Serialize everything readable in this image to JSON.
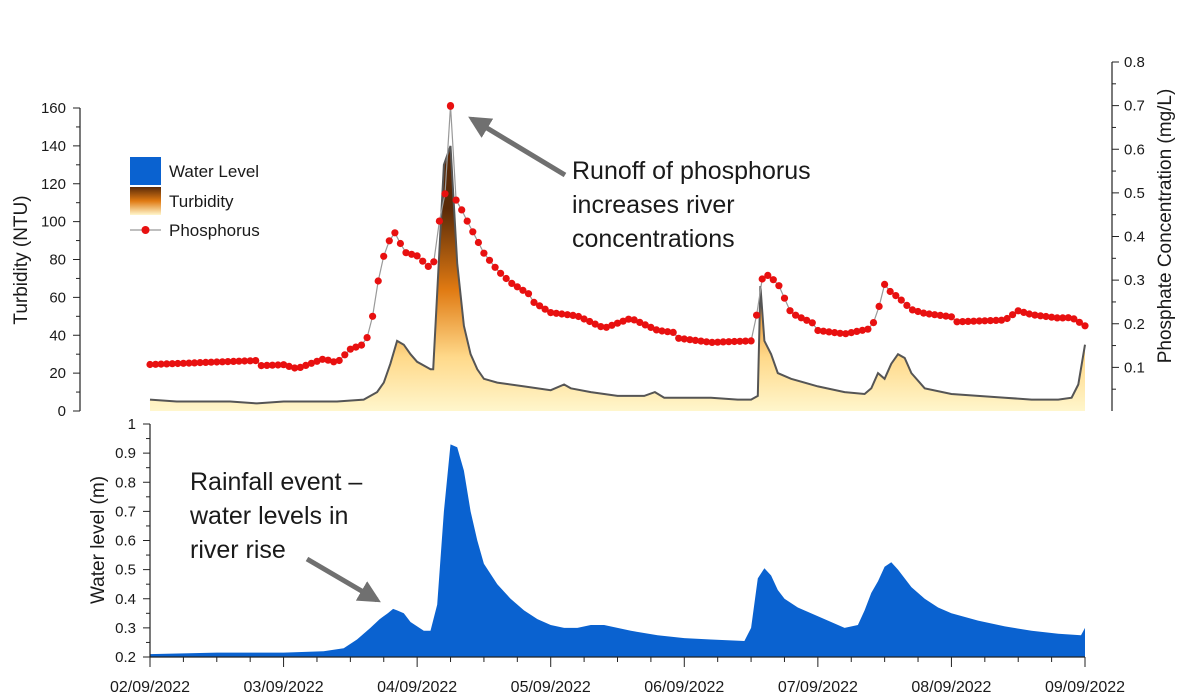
{
  "colors": {
    "water": "#0a62d0",
    "turbidity_dark": "#5a2a08",
    "turbidity_mid": "#e07a12",
    "turbidity_light": "#fff6cc",
    "turbidity_line": "#555555",
    "phosphorus": "#e81010",
    "phosphorus_line": "#999999",
    "arrow": "#707070",
    "axis": "#222222"
  },
  "chart_data": [
    {
      "type": "area",
      "name": "top-panel",
      "ylabel_left": "Turbidity (NTU)",
      "ylabel_right": "Phosphate Concentration (mg/L)",
      "ylim_left": [
        0,
        160
      ],
      "ylim_right": [
        0,
        0.8
      ],
      "xlim": [
        2,
        9
      ],
      "yticks_left": [
        0,
        20,
        40,
        60,
        80,
        100,
        120,
        140,
        160
      ],
      "yticks_right": [
        0.1,
        0.2,
        0.3,
        0.4,
        0.5,
        0.6,
        0.7,
        0.8
      ],
      "legend": {
        "water": "Water Level",
        "turbidity": "Turbidity",
        "phosphorus": "Phosphorus",
        "position": "top-left"
      },
      "annotation": {
        "lines": [
          "Runoff of phosphorus",
          "increases river",
          "concentrations"
        ],
        "target": [
          4.25,
          0.69
        ]
      },
      "series": [
        {
          "name": "Turbidity",
          "axis": "left",
          "x": [
            2.0,
            2.2,
            2.4,
            2.6,
            2.8,
            3.0,
            3.2,
            3.4,
            3.6,
            3.7,
            3.75,
            3.8,
            3.85,
            3.9,
            3.95,
            4.0,
            4.1,
            4.12,
            4.2,
            4.25,
            4.3,
            4.35,
            4.4,
            4.45,
            4.5,
            4.6,
            4.8,
            5.0,
            5.1,
            5.15,
            5.3,
            5.5,
            5.7,
            5.78,
            5.85,
            6.0,
            6.2,
            6.4,
            6.5,
            6.55,
            6.57,
            6.6,
            6.65,
            6.7,
            6.8,
            7.0,
            7.2,
            7.35,
            7.4,
            7.45,
            7.5,
            7.55,
            7.6,
            7.65,
            7.7,
            7.8,
            8.0,
            8.2,
            8.4,
            8.6,
            8.8,
            8.9,
            8.95,
            9.0
          ],
          "values": [
            6,
            5,
            5,
            5,
            4,
            5,
            5,
            5,
            6,
            10,
            15,
            25,
            37,
            35,
            30,
            26,
            22,
            22,
            130,
            140,
            78,
            45,
            30,
            22,
            17,
            15,
            13,
            11,
            14,
            12,
            10,
            8,
            8,
            10,
            7,
            7,
            7,
            6,
            6,
            8,
            66,
            37,
            30,
            20,
            17,
            13,
            10,
            9,
            12,
            20,
            17,
            25,
            30,
            28,
            20,
            12,
            9,
            8,
            7,
            6,
            6,
            7,
            14,
            35
          ]
        },
        {
          "name": "Phosphorus",
          "axis": "right",
          "x": [
            2.0,
            2.2,
            2.4,
            2.6,
            2.8,
            3.0,
            3.1,
            3.2,
            3.3,
            3.4,
            3.5,
            3.6,
            3.65,
            3.7,
            3.73,
            3.78,
            3.85,
            3.9,
            4.0,
            4.1,
            4.15,
            4.18,
            4.22,
            4.25,
            4.28,
            4.32,
            4.35,
            4.4,
            4.5,
            4.6,
            4.7,
            4.8,
            5.0,
            5.2,
            5.4,
            5.6,
            5.8,
            6.0,
            6.2,
            6.4,
            6.5,
            6.55,
            6.58,
            6.62,
            6.7,
            6.8,
            7.0,
            7.2,
            7.4,
            7.45,
            7.5,
            7.55,
            7.6,
            7.7,
            7.8,
            8.0,
            8.2,
            8.4,
            8.5,
            8.6,
            8.8,
            8.9,
            9.0
          ],
          "values": [
            0.11,
            0.11,
            0.11,
            0.11,
            0.11,
            0.11,
            0.1,
            0.11,
            0.12,
            0.11,
            0.14,
            0.15,
            0.18,
            0.28,
            0.33,
            0.38,
            0.41,
            0.37,
            0.36,
            0.33,
            0.36,
            0.5,
            0.5,
            0.7,
            0.49,
            0.47,
            0.45,
            0.42,
            0.36,
            0.32,
            0.29,
            0.27,
            0.23,
            0.22,
            0.19,
            0.21,
            0.18,
            0.17,
            0.16,
            0.16,
            0.16,
            0.23,
            0.3,
            0.31,
            0.29,
            0.22,
            0.19,
            0.18,
            0.19,
            0.23,
            0.29,
            0.27,
            0.26,
            0.23,
            0.22,
            0.21,
            0.21,
            0.21,
            0.23,
            0.22,
            0.21,
            0.21,
            0.19
          ]
        }
      ]
    },
    {
      "type": "area",
      "name": "bottom-panel",
      "ylabel": "Water level (m)",
      "xlabel": "",
      "ylim": [
        0.2,
        1.0
      ],
      "xlim": [
        2,
        9
      ],
      "yticks": [
        0.2,
        0.3,
        0.4,
        0.5,
        0.6,
        0.7,
        0.8,
        0.9,
        1
      ],
      "ytick_labels": [
        "0.2",
        "0.3",
        "0.4",
        "0.5",
        "0.6",
        "0.7",
        "0.8",
        "0.9",
        "1"
      ],
      "categories": [
        "02/09/2022",
        "03/09/2022",
        "04/09/2022",
        "05/09/2022",
        "06/09/2022",
        "07/09/2022",
        "08/09/2022",
        "09/09/2022"
      ],
      "annotation": {
        "lines": [
          "Rainfall event –",
          "water levels in",
          "river rise"
        ],
        "target": [
          3.75,
          0.4
        ]
      },
      "series": [
        {
          "name": "Water Level",
          "x": [
            2.0,
            2.5,
            3.0,
            3.3,
            3.45,
            3.55,
            3.65,
            3.72,
            3.78,
            3.82,
            3.85,
            3.9,
            3.95,
            4.05,
            4.1,
            4.15,
            4.2,
            4.25,
            4.3,
            4.35,
            4.4,
            4.45,
            4.5,
            4.6,
            4.7,
            4.8,
            4.9,
            5.0,
            5.1,
            5.2,
            5.3,
            5.4,
            5.6,
            5.8,
            6.0,
            6.2,
            6.45,
            6.5,
            6.55,
            6.6,
            6.65,
            6.7,
            6.75,
            6.85,
            7.0,
            7.2,
            7.3,
            7.35,
            7.4,
            7.45,
            7.5,
            7.55,
            7.6,
            7.7,
            7.8,
            7.9,
            8.0,
            8.2,
            8.4,
            8.6,
            8.8,
            8.97,
            9.0
          ],
          "values": [
            0.21,
            0.215,
            0.215,
            0.22,
            0.23,
            0.26,
            0.3,
            0.33,
            0.35,
            0.365,
            0.36,
            0.35,
            0.32,
            0.29,
            0.29,
            0.38,
            0.7,
            0.93,
            0.92,
            0.84,
            0.7,
            0.6,
            0.52,
            0.45,
            0.4,
            0.36,
            0.33,
            0.31,
            0.3,
            0.3,
            0.31,
            0.31,
            0.29,
            0.275,
            0.265,
            0.26,
            0.255,
            0.3,
            0.47,
            0.505,
            0.48,
            0.43,
            0.4,
            0.37,
            0.34,
            0.3,
            0.31,
            0.36,
            0.42,
            0.46,
            0.51,
            0.525,
            0.5,
            0.44,
            0.4,
            0.37,
            0.35,
            0.325,
            0.305,
            0.29,
            0.28,
            0.275,
            0.3
          ]
        }
      ]
    }
  ]
}
